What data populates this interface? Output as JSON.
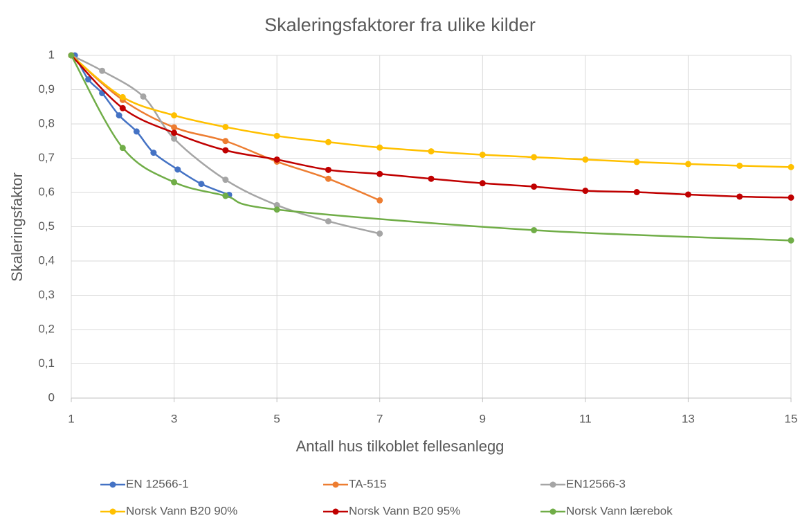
{
  "chart_data": {
    "type": "line",
    "smooth": true,
    "title": "Skaleringsfaktorer fra ulike kilder",
    "x_label": "Antall hus tilkoblet fellesanlegg",
    "y_label": "Skaleringsfaktor",
    "xlim": [
      1,
      15
    ],
    "xticks": [
      1,
      3,
      5,
      7,
      9,
      11,
      13,
      15
    ],
    "ylim": [
      0,
      1
    ],
    "yticks": [
      0,
      {
        "value": 0.1,
        "label": "0,1"
      },
      {
        "value": 0.2,
        "label": "0,2"
      },
      {
        "value": 0.3,
        "label": "0,3"
      },
      {
        "value": 0.4,
        "label": "0,4"
      },
      {
        "value": 0.5,
        "label": "0,5"
      },
      {
        "value": 0.6,
        "label": "0,6"
      },
      {
        "value": 0.7,
        "label": "0,7"
      },
      {
        "value": 0.8,
        "label": "0,8"
      },
      {
        "value": 0.9,
        "label": "0,9"
      },
      1
    ],
    "grid": true,
    "legend": "bottom",
    "series": [
      {
        "name": "EN 12566-1",
        "color": "#4472c4",
        "x": [
          1.07,
          1.33,
          1.6,
          1.93,
          2.27,
          2.6,
          3.07,
          3.53,
          4.07
        ],
        "values": [
          1,
          0.93,
          0.89,
          0.825,
          0.778,
          0.716,
          0.667,
          0.625,
          0.593
        ]
      },
      {
        "name": "TA-515",
        "color": "#ed7d31",
        "x": [
          1,
          2,
          3,
          4,
          5,
          6,
          7
        ],
        "values": [
          1,
          0.87,
          0.79,
          0.75,
          0.69,
          0.64,
          0.577
        ]
      },
      {
        "name": "EN12566-3",
        "color": "#a5a5a5",
        "x": [
          1,
          1.6,
          2.4,
          3,
          4,
          5,
          6,
          7
        ],
        "values": [
          1,
          0.955,
          0.88,
          0.757,
          0.637,
          0.563,
          0.516,
          0.48
        ]
      },
      {
        "name": "Norsk Vann B20 90%",
        "color": "#ffc000",
        "x": [
          1,
          2,
          3,
          4,
          5,
          6,
          7,
          8,
          9,
          10,
          11,
          12,
          13,
          14,
          15
        ],
        "values": [
          1,
          0.878,
          0.825,
          0.791,
          0.765,
          0.747,
          0.731,
          0.72,
          0.71,
          0.703,
          0.696,
          0.689,
          0.683,
          0.678,
          0.674
        ]
      },
      {
        "name": "Norsk Vann B20 95%",
        "color": "#c00000",
        "x": [
          1,
          2,
          3,
          4,
          5,
          6,
          7,
          8,
          9,
          10,
          11,
          12,
          13,
          14,
          15
        ],
        "values": [
          1,
          0.846,
          0.774,
          0.723,
          0.696,
          0.666,
          0.654,
          0.64,
          0.627,
          0.617,
          0.605,
          0.601,
          0.594,
          0.588,
          0.585
        ]
      },
      {
        "name": "Norsk Vann lærebok",
        "color": "#70ad47",
        "x": [
          1,
          2,
          3,
          4,
          5,
          10,
          15
        ],
        "values": [
          1,
          0.73,
          0.63,
          0.59,
          0.55,
          0.49,
          0.46
        ]
      }
    ]
  }
}
